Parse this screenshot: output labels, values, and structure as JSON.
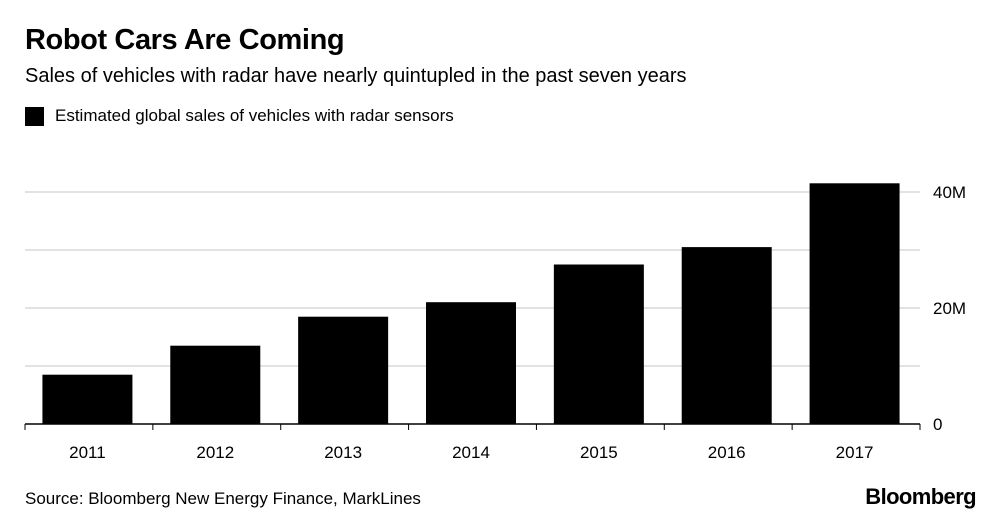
{
  "chart_data": {
    "type": "bar",
    "title": "Robot Cars Are Coming",
    "subtitle": "Sales of vehicles with radar have nearly quintupled in the past seven years",
    "categories": [
      "2011",
      "2012",
      "2013",
      "2014",
      "2015",
      "2016",
      "2017"
    ],
    "series": [
      {
        "name": "Estimated global sales of vehicles with radar sensors",
        "values": [
          8.5,
          13.5,
          18.5,
          21,
          27.5,
          30.5,
          41.5
        ],
        "color": "#000000"
      }
    ],
    "y_ticks": [
      {
        "value": 0,
        "label": "0"
      },
      {
        "value": 20,
        "label": "20M"
      },
      {
        "value": 40,
        "label": "40M"
      }
    ],
    "gridline_values": [
      10,
      20,
      30,
      40
    ],
    "ylim": [
      0,
      40
    ],
    "y_axis_side": "right",
    "grid": true,
    "legend": "top-left"
  },
  "source": "Source: Bloomberg New Energy Finance, MarkLines",
  "brand": "Bloomberg"
}
